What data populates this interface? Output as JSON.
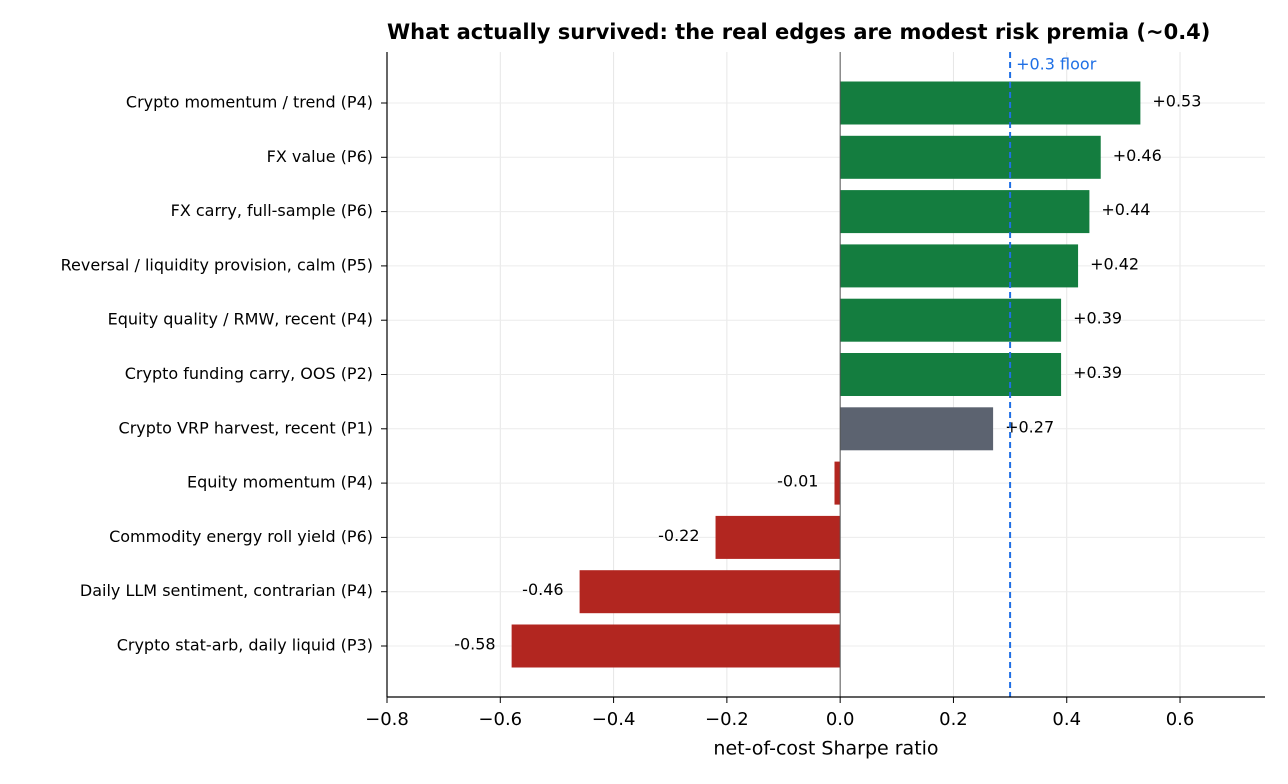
{
  "chart_data": {
    "type": "barh",
    "title": "What actually survived: the real edges are modest risk premia (~0.4)",
    "categories": [
      "Crypto momentum / trend (P4)",
      "FX value (P6)",
      "FX carry, full-sample (P6)",
      "Reversal / liquidity provision, calm (P5)",
      "Equity quality / RMW, recent (P4)",
      "Crypto funding carry, OOS (P2)",
      "Crypto VRP harvest, recent (P1)",
      "Equity momentum (P4)",
      "Commodity energy roll yield (P6)",
      "Daily LLM sentiment, contrarian (P4)",
      "Crypto stat-arb, daily liquid (P3)"
    ],
    "values": [
      0.53,
      0.46,
      0.44,
      0.42,
      0.39,
      0.39,
      0.27,
      -0.01,
      -0.22,
      -0.46,
      -0.58
    ],
    "value_labels": [
      "+0.53",
      "+0.46",
      "+0.44",
      "+0.42",
      "+0.39",
      "+0.39",
      "+0.27",
      "-0.01",
      "-0.22",
      "-0.46",
      "-0.58"
    ],
    "colors": [
      "#147d3f",
      "#147d3f",
      "#147d3f",
      "#147d3f",
      "#147d3f",
      "#147d3f",
      "#5c6370",
      "#b22620",
      "#b22620",
      "#b22620",
      "#b22620"
    ],
    "xlim": [
      -0.8,
      0.75
    ],
    "xticks": [
      {
        "value": -0.8,
        "label": "−0.8"
      },
      {
        "value": -0.6,
        "label": "−0.6"
      },
      {
        "value": -0.4,
        "label": "−0.4"
      },
      {
        "value": -0.2,
        "label": "−0.2"
      },
      {
        "value": 0.0,
        "label": "0.0"
      },
      0.2,
      0.4,
      0.6
    ],
    "xlabel": "net-of-cost Sharpe ratio",
    "grid": true,
    "reference_line": {
      "value": 0.3,
      "label": "+0.3 floor",
      "color": "#1f6fe5"
    }
  }
}
